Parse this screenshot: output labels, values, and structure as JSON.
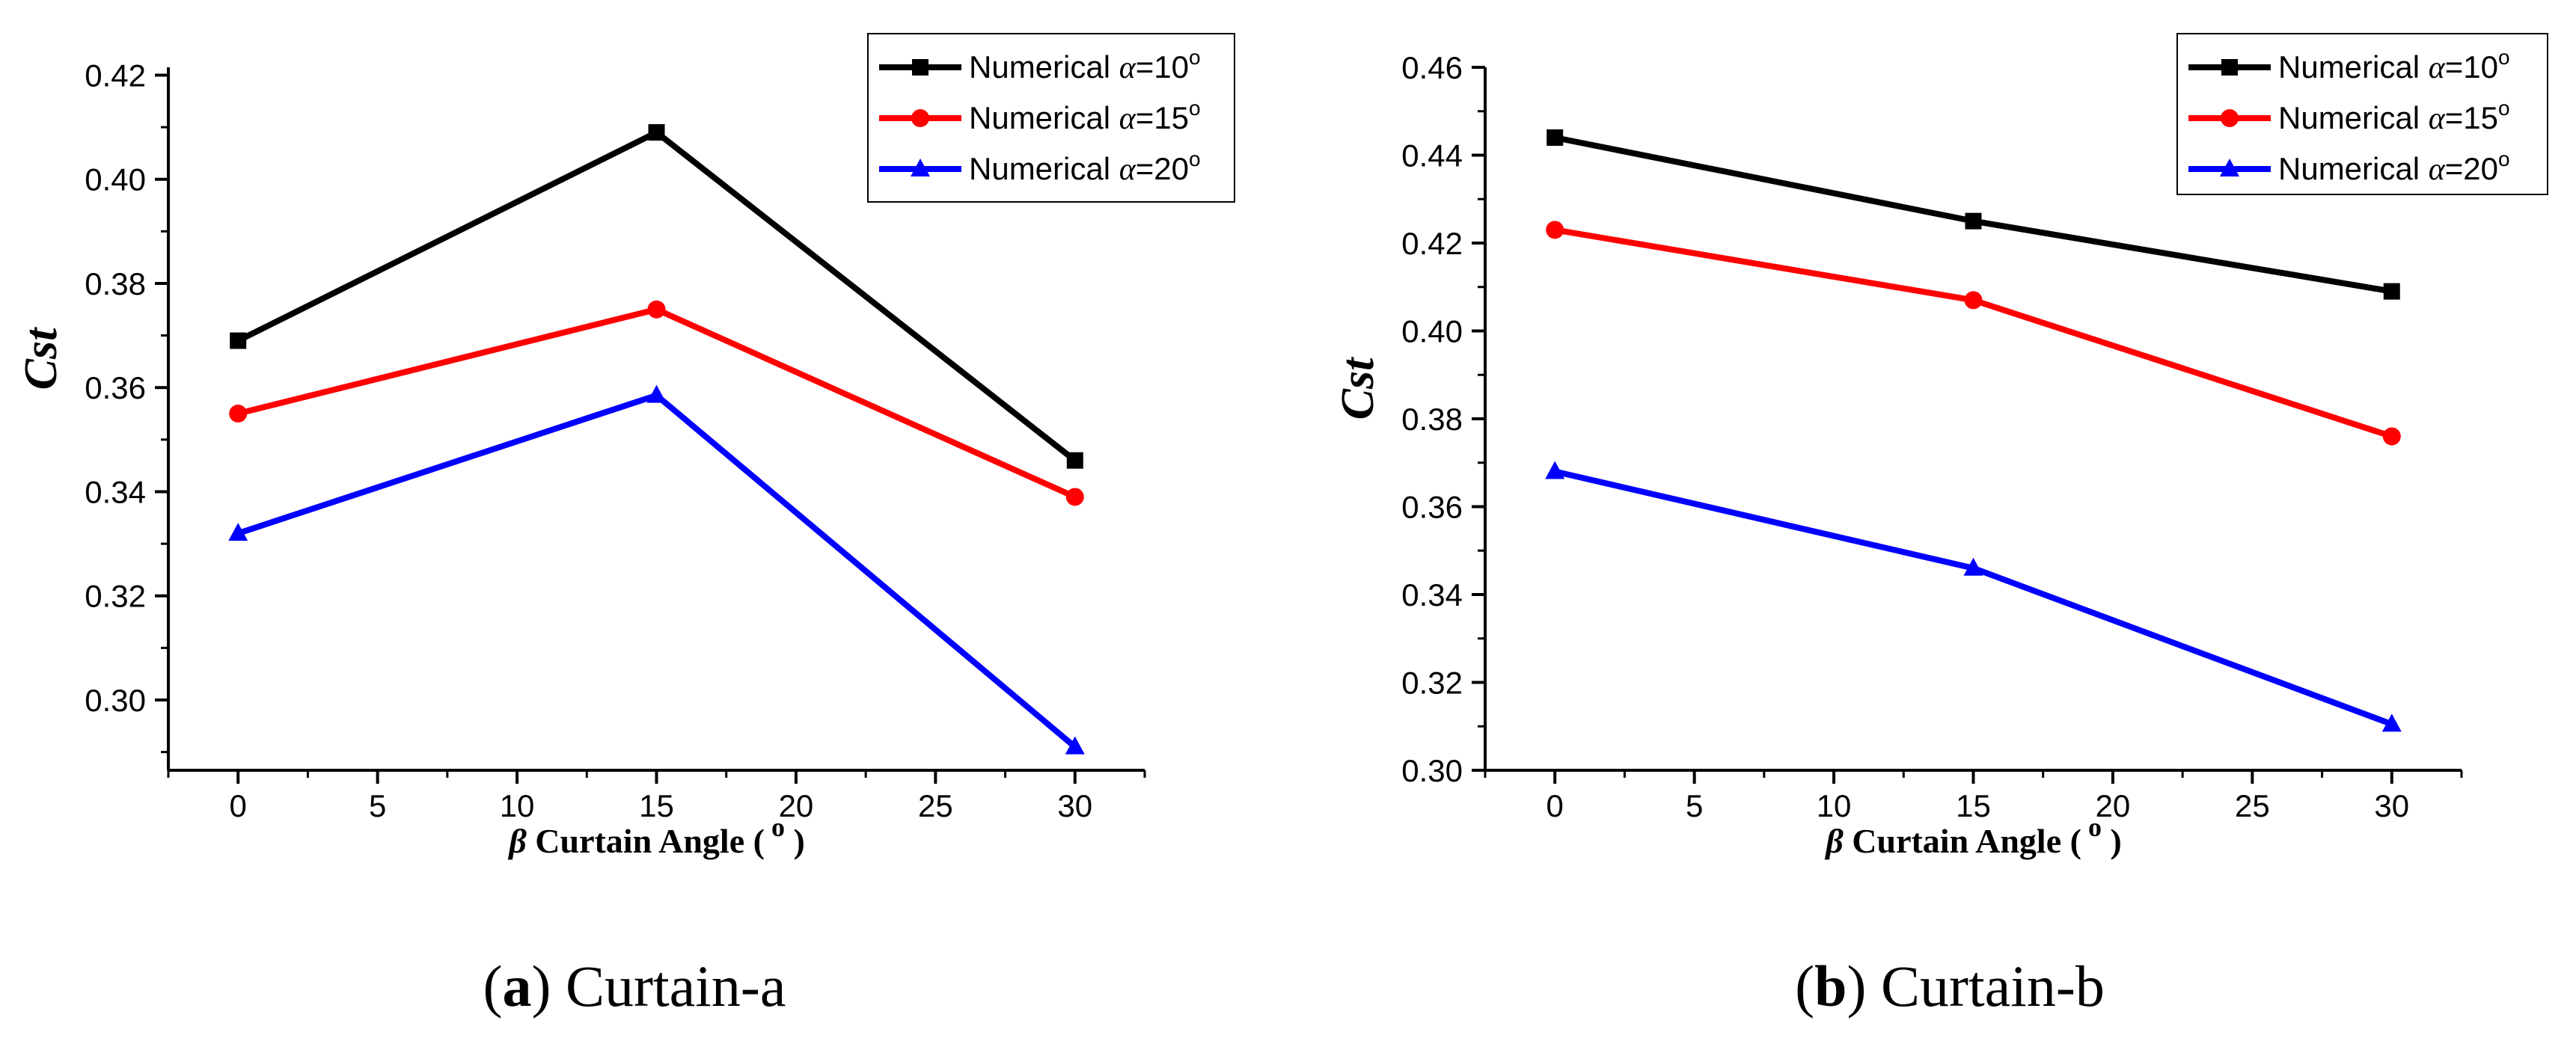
{
  "chart_data": [
    {
      "type": "line",
      "panel_label": "a",
      "caption": "Curtain-a",
      "xlabel_symbol": "β",
      "xlabel": "Curtain Angle (",
      "xlabel_super": "o",
      "xlabel_end": ")",
      "ylabel": "Cst",
      "xlim": [
        -2.5,
        32.5
      ],
      "ylim": [
        0.2865,
        0.4215
      ],
      "xticks": [
        0,
        5,
        10,
        15,
        20,
        25,
        30
      ],
      "yticks": [
        0.3,
        0.32,
        0.34,
        0.36,
        0.38,
        0.4,
        0.42
      ],
      "x": [
        0,
        15,
        30
      ],
      "series": [
        {
          "name": "Numerical α=10°",
          "legend_prefix": "Numerical ",
          "legend_symbol": "α",
          "legend_value": "=10",
          "legend_deg": "o",
          "color": "#000000",
          "marker": "square",
          "values": [
            0.369,
            0.409,
            0.346
          ]
        },
        {
          "name": "Numerical α=15°",
          "legend_prefix": "Numerical ",
          "legend_symbol": "α",
          "legend_value": "=15",
          "legend_deg": "o",
          "color": "#ff0000",
          "marker": "circle",
          "values": [
            0.355,
            0.375,
            0.339
          ]
        },
        {
          "name": "Numerical α=20°",
          "legend_prefix": "Numerical ",
          "legend_symbol": "α",
          "legend_value": "=20",
          "legend_deg": "o",
          "color": "#0000ff",
          "marker": "triangle",
          "values": [
            0.332,
            0.3585,
            0.291
          ]
        }
      ],
      "legend_position": "top-right"
    },
    {
      "type": "line",
      "panel_label": "b",
      "caption": "Curtain-b",
      "xlabel_symbol": "β",
      "xlabel": "Curtain Angle (",
      "xlabel_super": "o",
      "xlabel_end": ")",
      "ylabel": "Cst",
      "xlim": [
        -2.5,
        32.5
      ],
      "ylim": [
        0.3,
        0.46
      ],
      "xticks": [
        0,
        5,
        10,
        15,
        20,
        25,
        30
      ],
      "yticks": [
        0.3,
        0.32,
        0.34,
        0.36,
        0.38,
        0.4,
        0.42,
        0.44,
        0.46
      ],
      "x": [
        0,
        15,
        30
      ],
      "series": [
        {
          "name": "Numerical α=10°",
          "legend_prefix": "Numerical ",
          "legend_symbol": "α",
          "legend_value": "=10",
          "legend_deg": "o",
          "color": "#000000",
          "marker": "square",
          "values": [
            0.444,
            0.425,
            0.409
          ]
        },
        {
          "name": "Numerical α=15°",
          "legend_prefix": "Numerical ",
          "legend_symbol": "α",
          "legend_value": "=15",
          "legend_deg": "o",
          "color": "#ff0000",
          "marker": "circle",
          "values": [
            0.423,
            0.407,
            0.376
          ]
        },
        {
          "name": "Numerical α=20°",
          "legend_prefix": "Numerical ",
          "legend_symbol": "α",
          "legend_value": "=20",
          "legend_deg": "o",
          "color": "#0000ff",
          "marker": "triangle",
          "values": [
            0.368,
            0.346,
            0.3105
          ]
        }
      ],
      "legend_position": "top-right"
    }
  ]
}
